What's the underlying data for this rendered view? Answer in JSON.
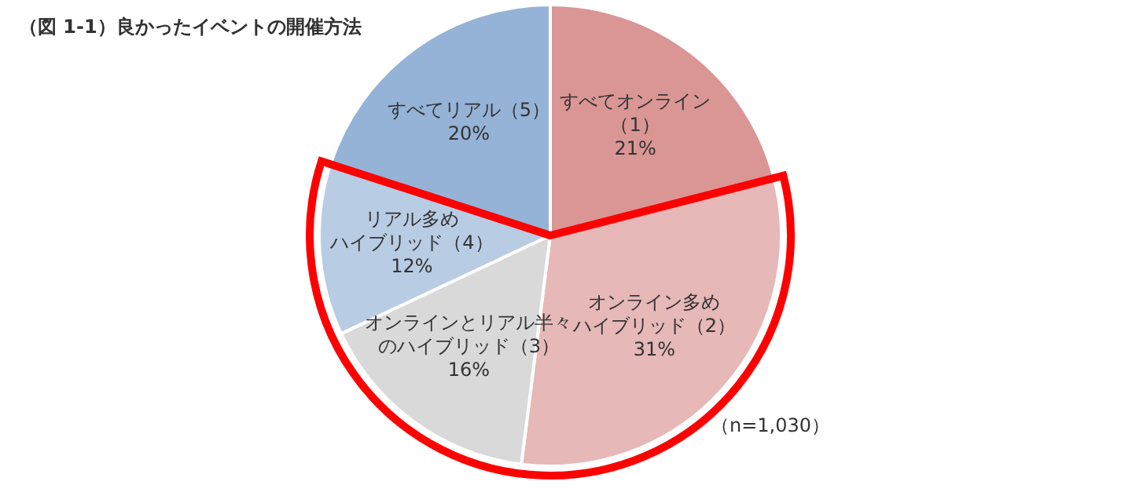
{
  "chart_data": {
    "type": "pie",
    "title": "（図 1-1）良かったイベントの開催方法",
    "categories": [
      "すべてオンライン（1）",
      "オンライン多めハイブリッド（2）",
      "オンラインとリアル半々のハイブリッド（3）",
      "リアル多めハイブリッド（4）",
      "すべてリアル（5）"
    ],
    "values": [
      21,
      31,
      16,
      12,
      20
    ],
    "value_labels": [
      "21%",
      "31%",
      "16%",
      "12%",
      "20%"
    ],
    "colors": [
      "#da9694",
      "#e6b8b7",
      "#d9d9d9",
      "#b8cce4",
      "#95b3d7"
    ],
    "annotations": [
      "（n=1,030）"
    ]
  }
}
